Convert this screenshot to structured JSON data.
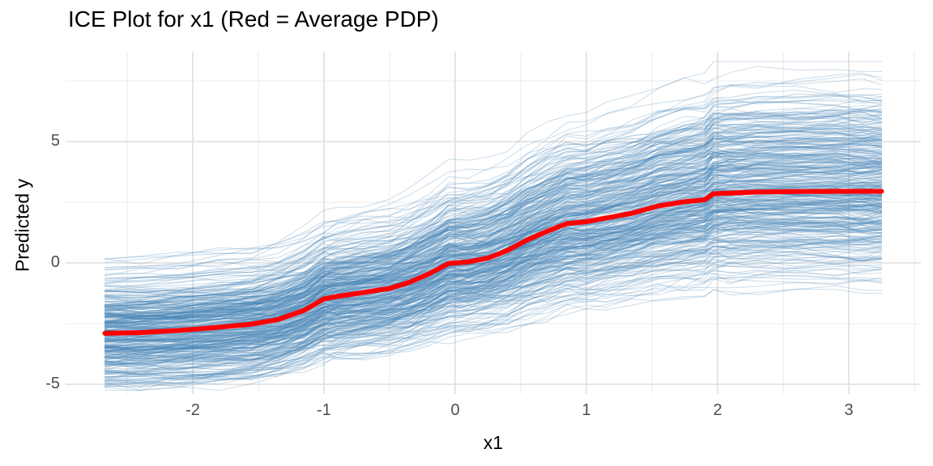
{
  "chart_data": {
    "type": "line",
    "title": "ICE Plot for x1 (Red = Average PDP)",
    "xlabel": "x1",
    "ylabel": "Predicted y",
    "x_ticks": [
      -2,
      -1,
      0,
      1,
      2,
      3
    ],
    "y_ticks": [
      -5,
      0,
      5
    ],
    "xlim": [
      -2.97,
      3.55
    ],
    "ylim": [
      -5.4,
      8.7
    ],
    "x_data_range": [
      -2.67,
      3.25
    ],
    "background_color": "#ffffff",
    "grid": {
      "major_color": "#E2E2E2",
      "minor_color": "#EBEBEB",
      "minor_x": [
        -2.5,
        -1.5,
        -0.5,
        0.5,
        1.5,
        2.5,
        3.5
      ],
      "minor_y": [
        -2.5,
        2.5,
        7.5
      ]
    },
    "pdp": {
      "name": "Average PDP",
      "color": "#FF0000",
      "stroke_width": 6,
      "x": [
        -2.67,
        -2.4,
        -2.1,
        -1.8,
        -1.55,
        -1.35,
        -1.15,
        -1.0,
        -0.9,
        -0.7,
        -0.5,
        -0.35,
        -0.2,
        -0.05,
        0.1,
        0.25,
        0.4,
        0.55,
        0.7,
        0.85,
        1.0,
        1.15,
        1.35,
        1.55,
        1.75,
        1.9,
        1.97,
        2.1,
        2.3,
        2.6,
        2.9,
        3.1,
        3.25
      ],
      "y": [
        -2.9,
        -2.87,
        -2.78,
        -2.65,
        -2.52,
        -2.33,
        -1.95,
        -1.48,
        -1.38,
        -1.22,
        -1.05,
        -0.8,
        -0.45,
        -0.02,
        0.04,
        0.2,
        0.52,
        0.95,
        1.3,
        1.62,
        1.7,
        1.85,
        2.05,
        2.35,
        2.52,
        2.6,
        2.85,
        2.88,
        2.92,
        2.94,
        2.95,
        2.95,
        2.95
      ]
    },
    "ice": {
      "name": "ICE curves",
      "color": "#4682B4",
      "opacity": 0.26,
      "stroke_width": 1.1,
      "count": 400,
      "seed": 1234567,
      "offset_sd": 1.15,
      "offset_clip": [
        -2.05,
        3.2
      ],
      "slope_sd": 0.22,
      "slope_clip": [
        0.65,
        1.32
      ],
      "late_boost_scale": 0.75,
      "wiggle_sd": 0.13,
      "y_clip": [
        -5.25,
        8.3
      ]
    }
  }
}
